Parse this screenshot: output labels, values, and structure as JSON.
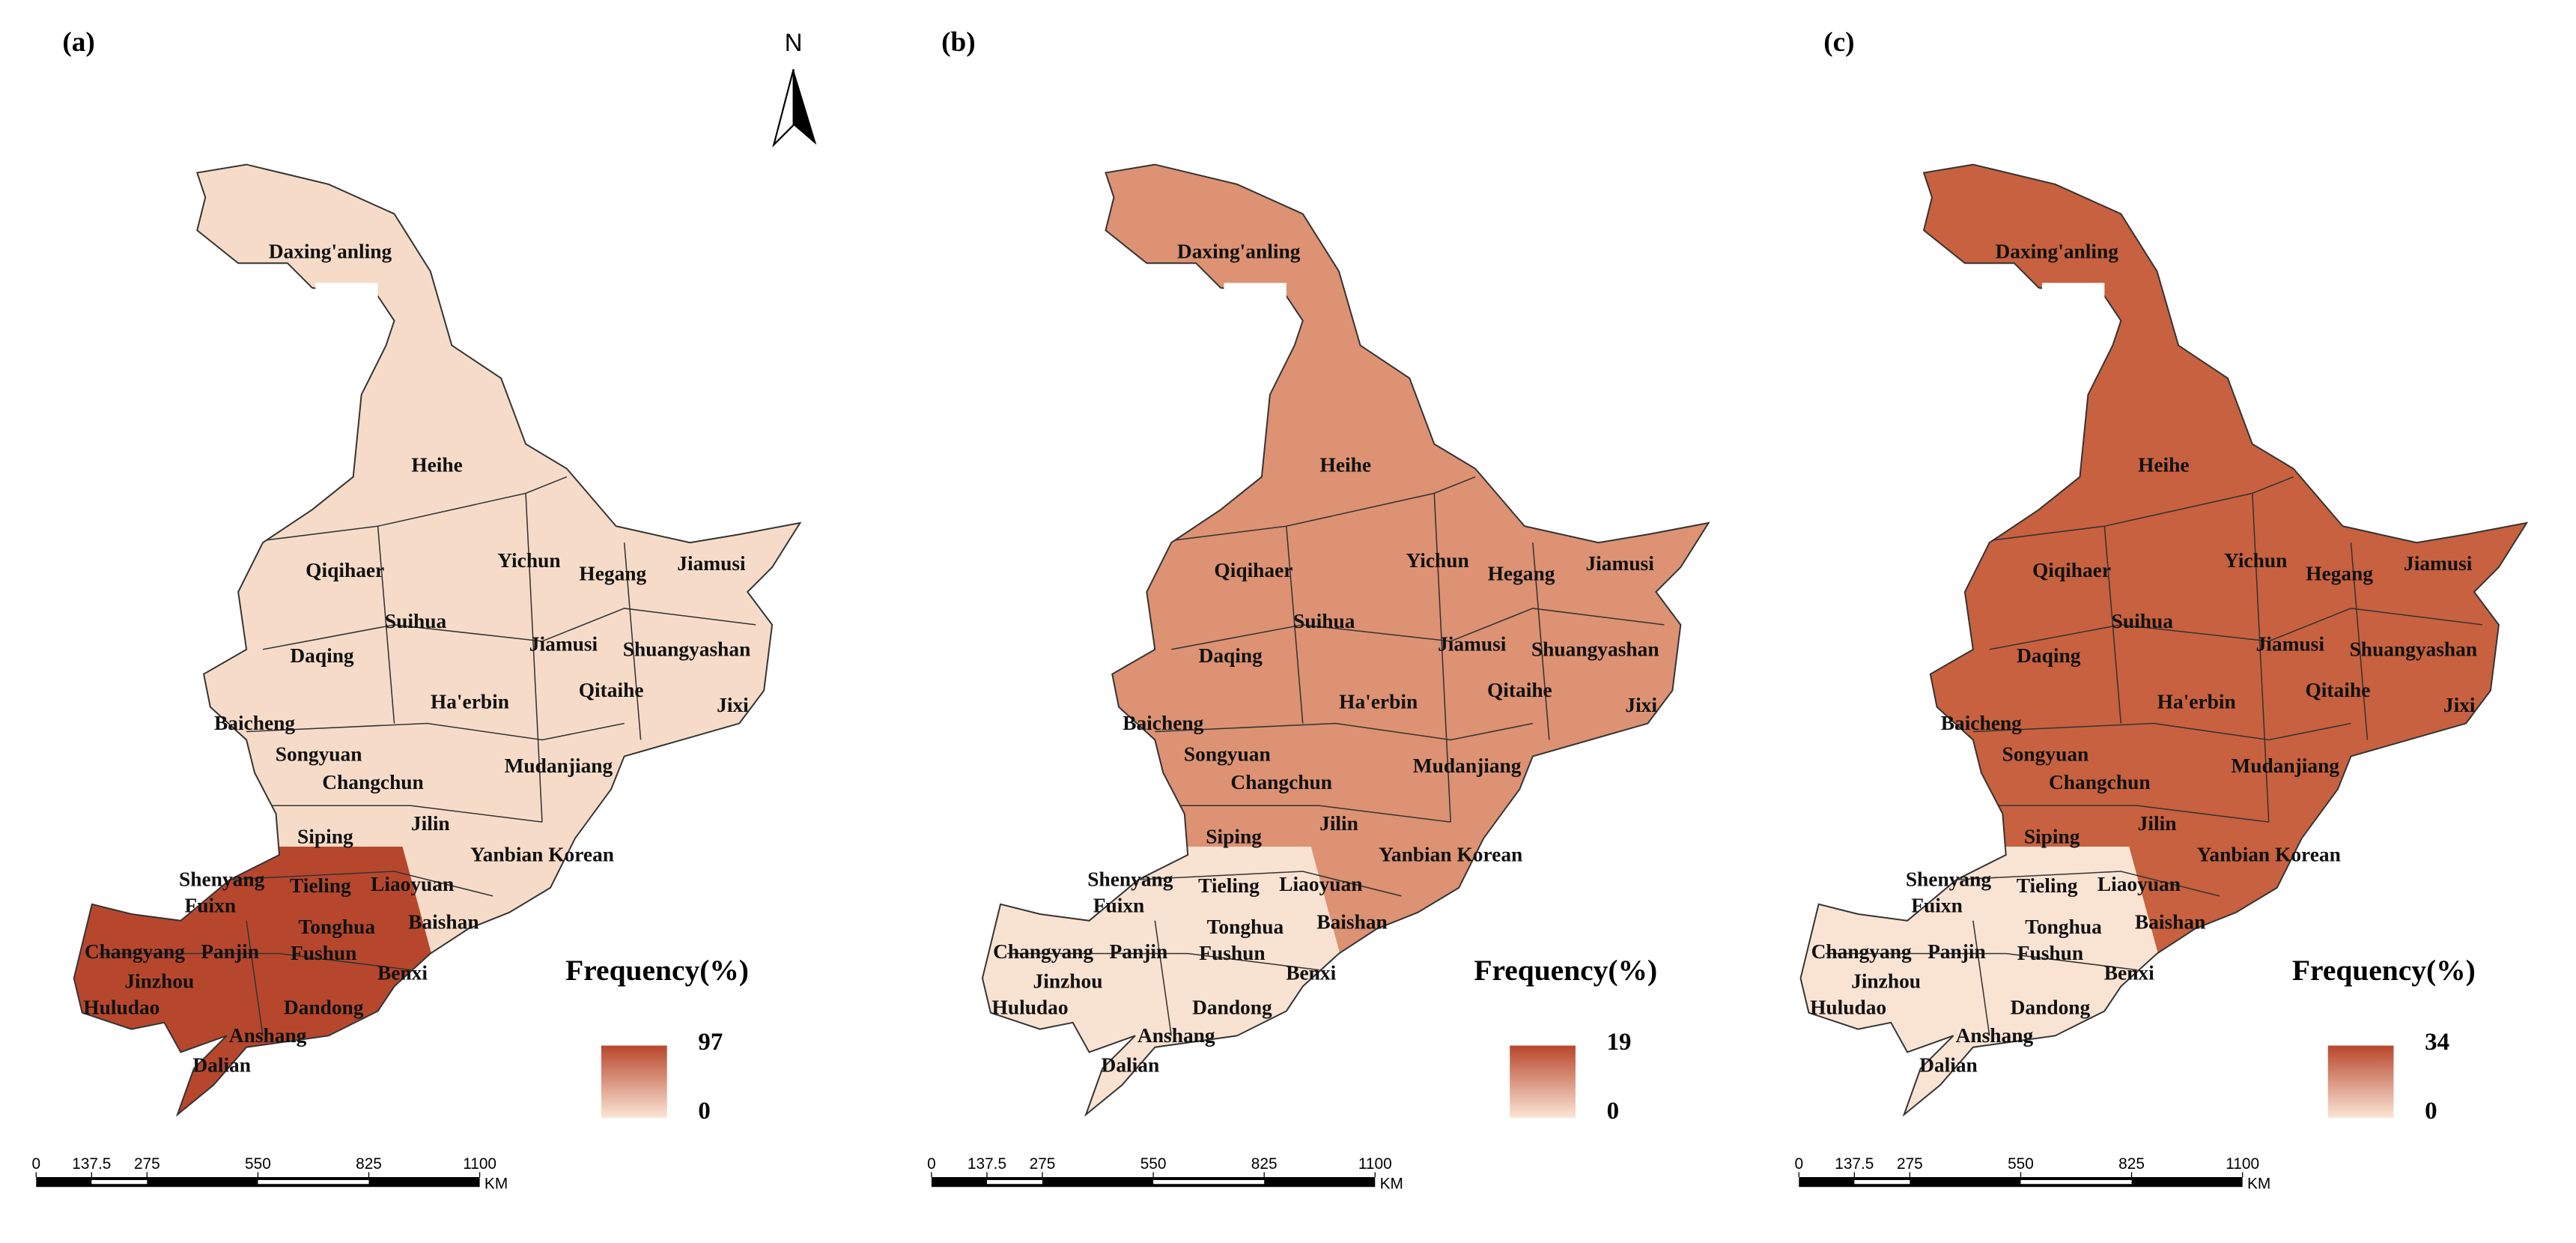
{
  "panels": [
    {
      "label": "(a)",
      "legend_title": "Frequency(%)",
      "legend_max": 97,
      "legend_min": 0
    },
    {
      "label": "(b)",
      "legend_title": "Frequency(%)",
      "legend_max": 19,
      "legend_min": 0
    },
    {
      "label": "(c)",
      "legend_title": "Frequency(%)",
      "legend_max": 34,
      "legend_min": 0
    }
  ],
  "cities": [
    "Daxing'anling",
    "Heihe",
    "Qiqihaer",
    "Yichun",
    "Hegang",
    "Jiamusi",
    "Suihua",
    "Jiamusi",
    "Daqing",
    "Shuangyashan",
    "Ha'erbin",
    "Qitaihe",
    "Jixi",
    "Baicheng",
    "Songyuan",
    "Mudanjiang",
    "Changchun",
    "Jilin",
    "Siping",
    "Yanbian Korean",
    "Shenyang",
    "Tieling",
    "Liaoyuan",
    "Fuixn",
    "Baishan",
    "Tonghua",
    "Changyang",
    "Panjin",
    "Fushun",
    "Benxi",
    "Jinzhou",
    "Dandong",
    "Huludao",
    "Anshang",
    "Dalian"
  ],
  "scale_bar": {
    "ticks": [
      0,
      137.5,
      275,
      550,
      825,
      1100
    ],
    "unit": "KM"
  },
  "north": "N"
}
